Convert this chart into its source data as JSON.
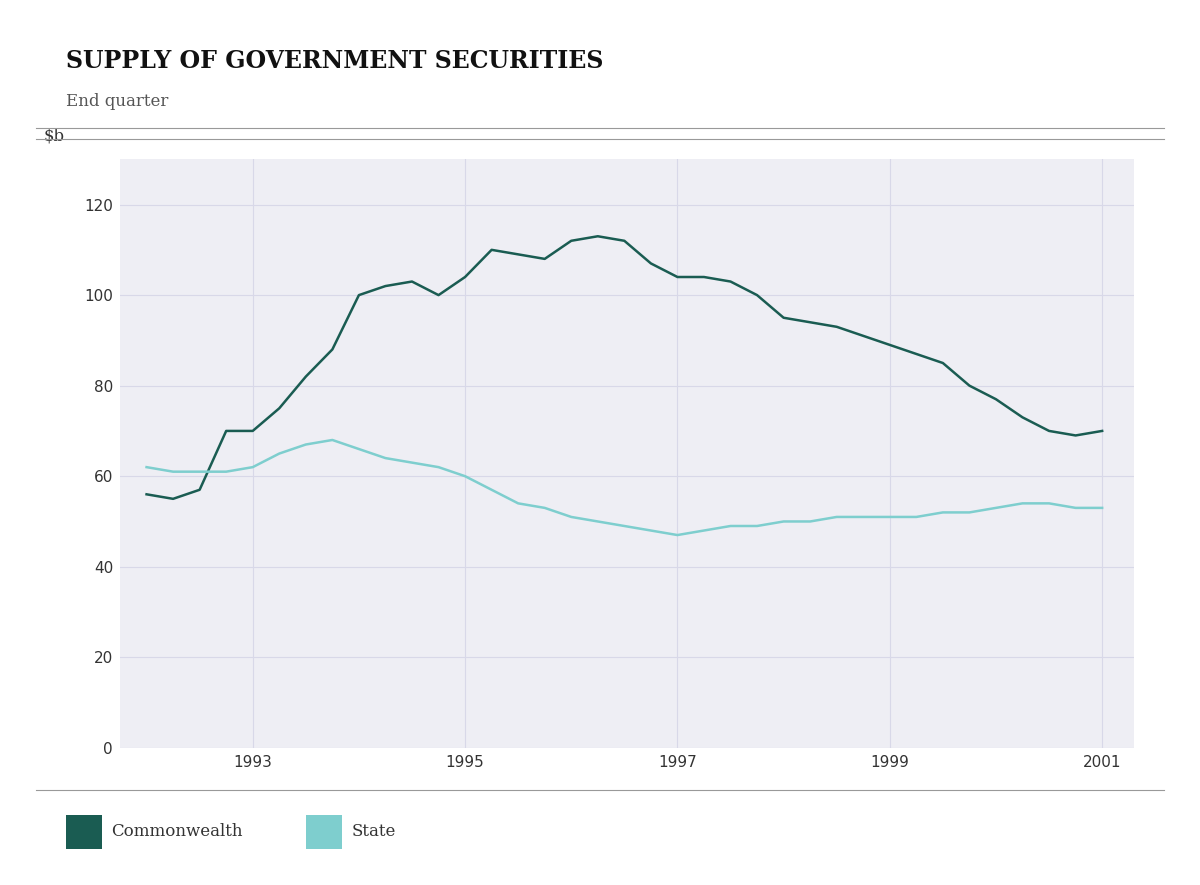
{
  "title": "SUPPLY OF GOVERNMENT SECURITIES",
  "subtitle": "End quarter",
  "ylim": [
    0,
    130
  ],
  "yticks": [
    0,
    20,
    40,
    60,
    80,
    100,
    120
  ],
  "bg_color": "#ffffff",
  "plot_bg_color": "#eeeef4",
  "grid_color": "#d8d8e8",
  "title_color": "#111111",
  "subtitle_color": "#555555",
  "tick_color": "#333333",
  "commonwealth_color": "#1a5c52",
  "state_color": "#7ecece",
  "commonwealth_data": {
    "x": [
      1992.0,
      1992.25,
      1992.5,
      1992.75,
      1993.0,
      1993.25,
      1993.5,
      1993.75,
      1994.0,
      1994.25,
      1994.5,
      1994.75,
      1995.0,
      1995.25,
      1995.5,
      1995.75,
      1996.0,
      1996.25,
      1996.5,
      1996.75,
      1997.0,
      1997.25,
      1997.5,
      1997.75,
      1998.0,
      1998.25,
      1998.5,
      1998.75,
      1999.0,
      1999.25,
      1999.5,
      1999.75,
      2000.0,
      2000.25,
      2000.5,
      2000.75,
      2001.0
    ],
    "y": [
      56,
      55,
      57,
      70,
      70,
      75,
      82,
      88,
      100,
      102,
      103,
      100,
      104,
      110,
      109,
      108,
      112,
      113,
      112,
      107,
      104,
      104,
      103,
      100,
      95,
      94,
      93,
      91,
      89,
      87,
      85,
      80,
      77,
      73,
      70,
      69,
      70
    ]
  },
  "state_data": {
    "x": [
      1992.0,
      1992.25,
      1992.5,
      1992.75,
      1993.0,
      1993.25,
      1993.5,
      1993.75,
      1994.0,
      1994.25,
      1994.5,
      1994.75,
      1995.0,
      1995.25,
      1995.5,
      1995.75,
      1996.0,
      1996.25,
      1996.5,
      1996.75,
      1997.0,
      1997.25,
      1997.5,
      1997.75,
      1998.0,
      1998.25,
      1998.5,
      1998.75,
      1999.0,
      1999.25,
      1999.5,
      1999.75,
      2000.0,
      2000.25,
      2000.5,
      2000.75,
      2001.0
    ],
    "y": [
      62,
      61,
      61,
      61,
      62,
      65,
      67,
      68,
      66,
      64,
      63,
      62,
      60,
      57,
      54,
      53,
      51,
      50,
      49,
      48,
      47,
      48,
      49,
      49,
      50,
      50,
      51,
      51,
      51,
      51,
      52,
      52,
      53,
      54,
      54,
      53,
      53
    ]
  },
  "xticks": [
    1993,
    1995,
    1997,
    1999,
    2001
  ],
  "xlim": [
    1991.75,
    2001.3
  ],
  "legend": [
    {
      "label": "Commonwealth",
      "color": "#1a5c52"
    },
    {
      "label": "State",
      "color": "#7ecece"
    }
  ],
  "separator_color": "#999999",
  "linewidth": 1.8
}
